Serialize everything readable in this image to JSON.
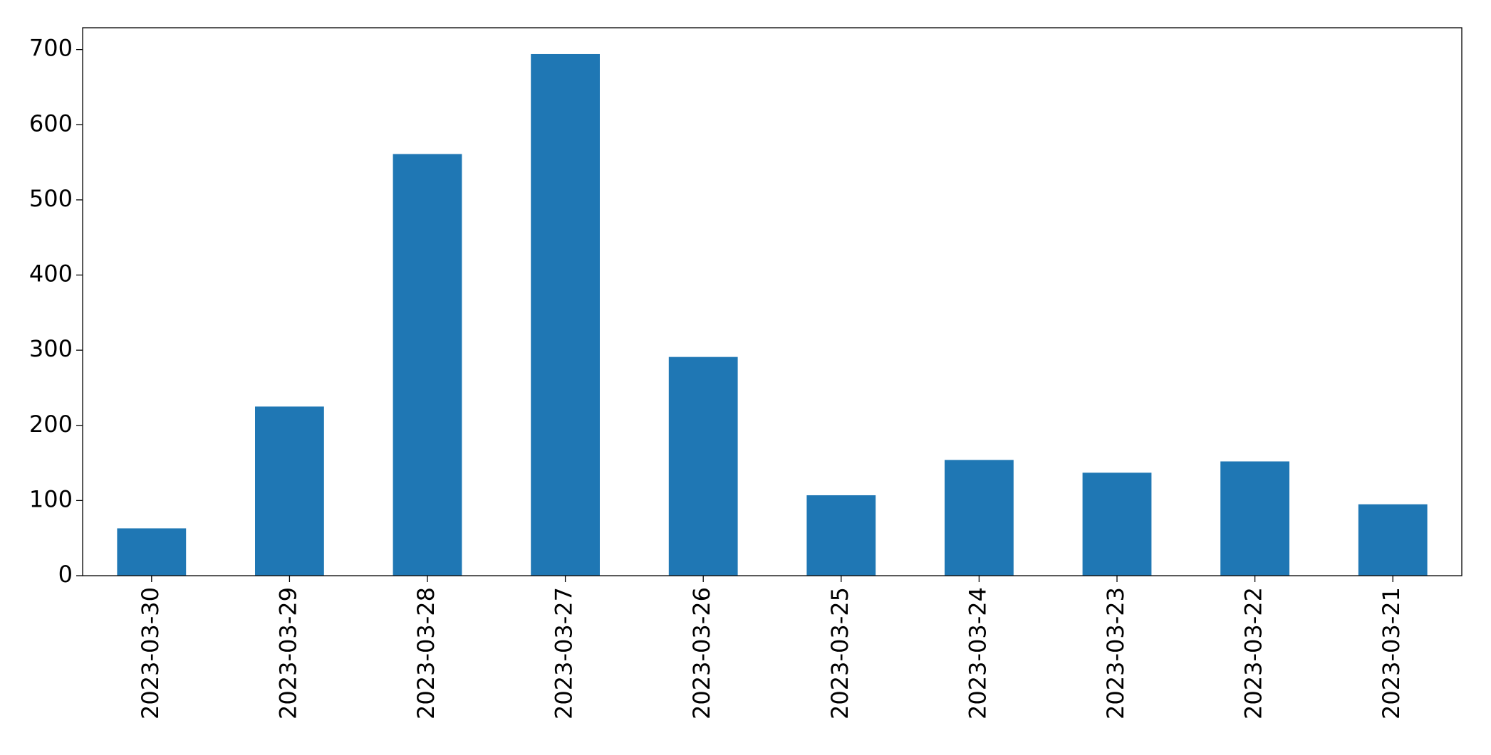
{
  "chart_data": {
    "type": "bar",
    "categories": [
      "2023-03-30",
      "2023-03-29",
      "2023-03-28",
      "2023-03-27",
      "2023-03-26",
      "2023-03-25",
      "2023-03-24",
      "2023-03-23",
      "2023-03-22",
      "2023-03-21"
    ],
    "values": [
      63,
      225,
      561,
      694,
      291,
      107,
      154,
      137,
      152,
      95
    ],
    "color": "#1f77b4",
    "ylim": [
      0,
      729
    ],
    "yticks": [
      0,
      100,
      200,
      300,
      400,
      500,
      600,
      700
    ],
    "grid": false
  }
}
